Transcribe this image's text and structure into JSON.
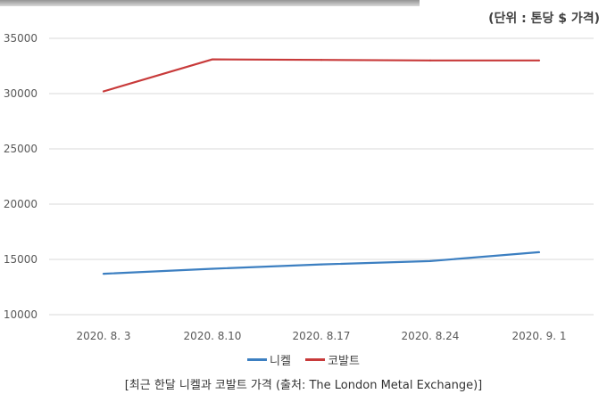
{
  "unit_label": "(단위 : 톤당 $ 가격)",
  "caption": "[최근 한달 니켈과 코발트 가격 (출처: The London Metal Exchange)]",
  "chart_data": {
    "type": "line",
    "categories": [
      "2020. 8. 3",
      "2020. 8.10",
      "2020. 8.17",
      "2020. 8.24",
      "2020. 9. 1"
    ],
    "series": [
      {
        "name": "니켈",
        "color": "#3c7fc1",
        "values": [
          13700,
          14150,
          14550,
          14850,
          15650
        ]
      },
      {
        "name": "코발트",
        "color": "#c83a3a",
        "values": [
          30200,
          33100,
          33050,
          33000,
          33000
        ]
      }
    ],
    "yticks": [
      "10000",
      "15000",
      "20000",
      "25000",
      "30000",
      "35000"
    ],
    "ylim": [
      10000,
      35000
    ],
    "grid": true,
    "legend_position": "bottom"
  }
}
